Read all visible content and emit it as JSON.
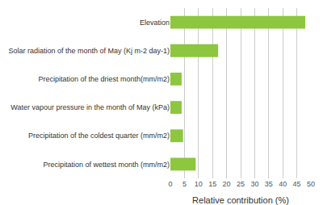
{
  "chart_data": {
    "type": "bar",
    "orientation": "horizontal",
    "categories": [
      "Precipitation of wettest month (mm/m2)",
      "Precipitation of the coldest quarter (mm/m2)",
      "Water vapour pressure in the month of May (kPa)",
      "Precipitation of the driest month(mm/m2)",
      "Solar radiation of the month of May (Kj m-2 day-1)",
      "Elevation"
    ],
    "values": [
      9.0,
      4.5,
      4.0,
      4.0,
      17.0,
      48.0
    ],
    "color": "#8dc63f",
    "xlabel": "Relative contribution (%)",
    "xlim": [
      0,
      50
    ],
    "xticks": [
      0,
      5,
      10,
      15,
      20,
      25,
      30,
      35,
      40,
      45,
      50
    ],
    "grid": true
  }
}
